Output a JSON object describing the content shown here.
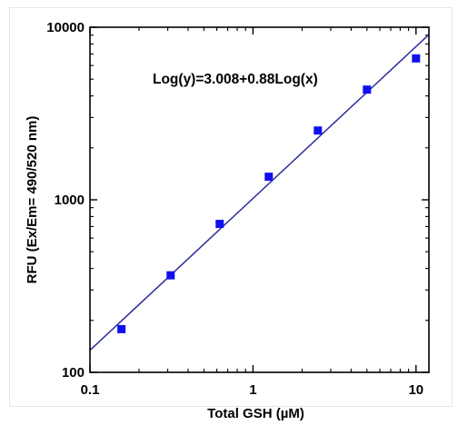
{
  "chart_data": {
    "type": "scatter",
    "xscale": "log",
    "yscale": "log",
    "xlim": [
      0.1,
      12
    ],
    "ylim": [
      100,
      10000
    ],
    "xlabel": "Total GSH (µM)",
    "ylabel": "RFU (Ex/Em= 490/520 nm)",
    "x_ticks": [
      0.1,
      1,
      10
    ],
    "x_tick_labels": [
      "0.1",
      "1",
      "10"
    ],
    "y_ticks": [
      100,
      1000,
      10000
    ],
    "y_tick_labels": [
      "100",
      "1000",
      "10000"
    ],
    "grid": false,
    "series": [
      {
        "x": [
          0.156,
          0.3125,
          0.625,
          1.25,
          2.5,
          5,
          10
        ],
        "y": [
          178,
          365,
          725,
          1360,
          2520,
          4350,
          6600
        ]
      }
    ],
    "fit_line": {
      "intercept": 3.008,
      "slope": 0.88
    },
    "annotation": "Log(y)=3.008+0.88Log(x)",
    "colors": {
      "points": "#1010ee",
      "line": "#2b2b9c",
      "axis": "#000000"
    }
  }
}
